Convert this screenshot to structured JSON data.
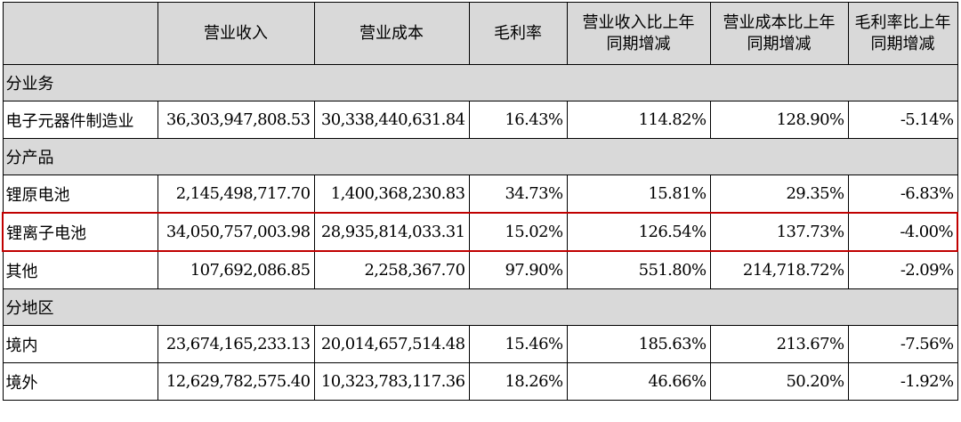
{
  "headers": [
    [
      ""
    ],
    [
      "营业收入"
    ],
    [
      "营业成本"
    ],
    [
      "毛利率"
    ],
    [
      "营业收入比上年",
      "同期增减"
    ],
    [
      "营业成本比上年",
      "同期增减"
    ],
    [
      "毛利率比上年",
      "同期增减"
    ]
  ],
  "rows": [
    {
      "type": "section",
      "label": "分业务"
    },
    {
      "type": "row",
      "cells": [
        "电子元器件制造业",
        "36,303,947,808.53",
        "30,338,440,631.84",
        "16.43%",
        "114.82%",
        "128.90%",
        "-5.14%"
      ]
    },
    {
      "type": "section",
      "label": "分产品"
    },
    {
      "type": "row",
      "cells": [
        "锂原电池",
        "2,145,498,717.70",
        "1,400,368,230.83",
        "34.73%",
        "15.81%",
        "29.35%",
        "-6.83%"
      ]
    },
    {
      "type": "row",
      "highlight": true,
      "cells": [
        "锂离子电池",
        "34,050,757,003.98",
        "28,935,814,033.31",
        "15.02%",
        "126.54%",
        "137.73%",
        "-4.00%"
      ]
    },
    {
      "type": "row",
      "cells": [
        "其他",
        "107,692,086.85",
        "2,258,367.70",
        "97.90%",
        "551.80%",
        "214,718.72%",
        "-2.09%"
      ]
    },
    {
      "type": "section",
      "label": "分地区"
    },
    {
      "type": "row",
      "cells": [
        "境内",
        "23,674,165,233.13",
        "20,014,657,514.48",
        "15.46%",
        "185.63%",
        "213.67%",
        "-7.56%"
      ]
    },
    {
      "type": "row",
      "cells": [
        "境外",
        "12,629,782,575.40",
        "10,323,783,117.36",
        "18.26%",
        "46.66%",
        "50.20%",
        "-1.92%"
      ]
    }
  ],
  "colors": {
    "header_bg": "#d9d9d9",
    "section_bg": "#d9d9d9",
    "highlight_border": "#c00000",
    "border": "#000000"
  }
}
